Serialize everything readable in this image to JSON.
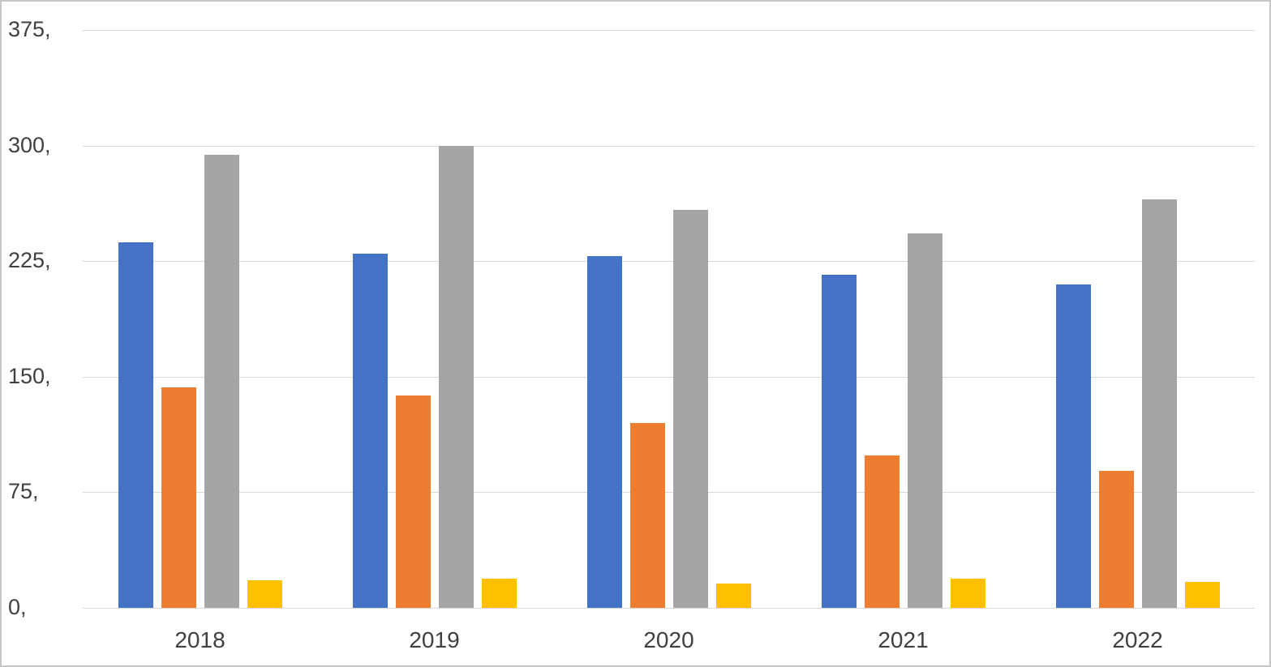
{
  "chart_data": {
    "type": "bar",
    "title": "",
    "categories": [
      "2018",
      "2019",
      "2020",
      "2021",
      "2022"
    ],
    "series": [
      {
        "name": "blue",
        "color": "#4472C4",
        "values": [
          237,
          230,
          228,
          216,
          210
        ]
      },
      {
        "name": "orange",
        "color": "#ED7D31",
        "values": [
          143,
          138,
          120,
          99,
          89
        ]
      },
      {
        "name": "gray",
        "color": "#A5A5A5",
        "values": [
          294,
          300,
          258,
          243,
          265
        ]
      },
      {
        "name": "yellow",
        "color": "#FFC000",
        "values": [
          18,
          19,
          16,
          19,
          17
        ]
      }
    ],
    "y_axis": {
      "min": 0,
      "max": 375,
      "tick_step": 75,
      "tick_labels": [
        "0,",
        "75,",
        "150,",
        "225,",
        "300,",
        "375,"
      ]
    },
    "x_axis": {
      "tick_labels": [
        "2018",
        "2019",
        "2020",
        "2021",
        "2022"
      ]
    },
    "grid": true,
    "legend": "none",
    "gridline_color": "#d9d9d9",
    "axis_text_color": "#404040"
  }
}
